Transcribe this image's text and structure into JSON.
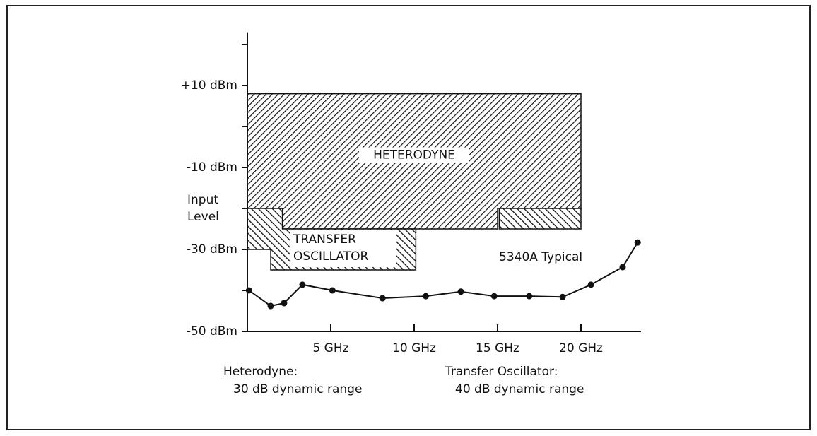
{
  "chart_data": {
    "type": "region",
    "ylabel": [
      "Input",
      "Level"
    ],
    "xlim": [
      0,
      23.6
    ],
    "ylim": [
      -50,
      23
    ],
    "xticks": [
      {
        "value": 5,
        "label": "5 GHz"
      },
      {
        "value": 10,
        "label": "10 GHz"
      },
      {
        "value": 15,
        "label": "15 GHz"
      },
      {
        "value": 20,
        "label": "20 GHz"
      }
    ],
    "yticks": [
      {
        "value": 10,
        "label": "+10 dBm"
      },
      {
        "value": -10,
        "label": "-10 dBm"
      },
      {
        "value": -30,
        "label": "-30 dBm"
      },
      {
        "value": -50,
        "label": "-50 dBm"
      }
    ],
    "yminorticks": [
      20,
      0,
      -20,
      -40
    ],
    "regions": [
      {
        "name": "HETERODYNE",
        "x": [
          0,
          20,
          20,
          15,
          15,
          2.1,
          2.1,
          0
        ],
        "y": [
          8,
          8,
          -20,
          -20,
          -25,
          -25,
          -20,
          -20
        ]
      },
      {
        "name": [
          "TRANSFER",
          "OSCILLATOR"
        ],
        "x": [
          0,
          2.1,
          2.1,
          10.1,
          10.1,
          1.4,
          1.4,
          0
        ],
        "y": [
          -20,
          -20,
          -25,
          -25,
          -35,
          -35,
          -30,
          -30
        ]
      },
      {
        "x": [
          15.1,
          20,
          20,
          15.1
        ],
        "y": [
          -20,
          -20,
          -25,
          -25
        ]
      }
    ],
    "series": [
      {
        "name": "5340A Typical",
        "color": "#111111",
        "x": [
          0.1,
          1.4,
          2.2,
          3.3,
          5.1,
          8.1,
          10.7,
          12.8,
          14.8,
          16.9,
          18.9,
          20.6,
          22.5,
          23.4
        ],
        "values": [
          -40,
          -43.8,
          -43.1,
          -38.6,
          -40,
          -41.9,
          -41.4,
          -40.3,
          -41.4,
          -41.4,
          -41.6,
          -38.6,
          -34.3,
          -28.3
        ]
      }
    ],
    "annotations": [
      [
        "Heterodyne:",
        "30 dB  dynamic range"
      ],
      [
        "Transfer Oscillator:",
        "40 dB  dynamic range"
      ]
    ]
  }
}
